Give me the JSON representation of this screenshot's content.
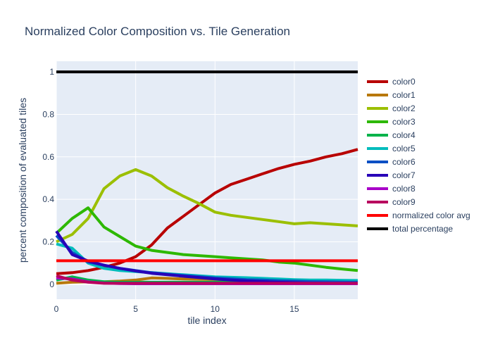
{
  "chart_data": {
    "type": "line",
    "title": "Normalized Color Composition vs. Tile Generation",
    "xlabel": "tile index",
    "ylabel": "percent composition of evaluated tiles",
    "xlim": [
      0,
      19
    ],
    "ylim": [
      -0.07,
      1.05
    ],
    "xticks": [
      0,
      5,
      10,
      15
    ],
    "yticks": [
      0,
      0.2,
      0.4,
      0.6,
      0.8,
      1
    ],
    "grid": true,
    "legend_position": "right",
    "x": [
      0,
      1,
      2,
      3,
      4,
      5,
      6,
      7,
      8,
      9,
      10,
      11,
      12,
      13,
      14,
      15,
      16,
      17,
      18,
      19
    ],
    "series": [
      {
        "name": "color0",
        "color": "#b80000",
        "values": [
          0.05,
          0.055,
          0.065,
          0.08,
          0.1,
          0.13,
          0.185,
          0.265,
          0.32,
          0.375,
          0.43,
          0.47,
          0.495,
          0.52,
          0.545,
          0.565,
          0.58,
          0.6,
          0.615,
          0.635
        ]
      },
      {
        "name": "color1",
        "color": "#b8780a",
        "values": [
          0.005,
          0.01,
          0.012,
          0.012,
          0.015,
          0.02,
          0.03,
          0.028,
          0.025,
          0.024,
          0.023,
          0.022,
          0.021,
          0.02,
          0.02,
          0.019,
          0.018,
          0.017,
          0.016,
          0.015
        ]
      },
      {
        "name": "color2",
        "color": "#9bbf00",
        "values": [
          0.2,
          0.235,
          0.31,
          0.45,
          0.51,
          0.54,
          0.51,
          0.455,
          0.415,
          0.38,
          0.34,
          0.325,
          0.315,
          0.305,
          0.295,
          0.285,
          0.29,
          0.285,
          0.28,
          0.275
        ]
      },
      {
        "name": "color3",
        "color": "#2db800",
        "values": [
          0.24,
          0.31,
          0.36,
          0.27,
          0.225,
          0.18,
          0.16,
          0.15,
          0.14,
          0.135,
          0.13,
          0.125,
          0.12,
          0.115,
          0.105,
          0.1,
          0.09,
          0.08,
          0.072,
          0.065
        ]
      },
      {
        "name": "color4",
        "color": "#00b34a",
        "values": [
          0.02,
          0.035,
          0.02,
          0.012,
          0.01,
          0.01,
          0.01,
          0.01,
          0.01,
          0.01,
          0.01,
          0.01,
          0.01,
          0.01,
          0.01,
          0.01,
          0.01,
          0.01,
          0.01,
          0.01
        ]
      },
      {
        "name": "color5",
        "color": "#00bcbc",
        "values": [
          0.19,
          0.17,
          0.1,
          0.075,
          0.065,
          0.06,
          0.055,
          0.05,
          0.045,
          0.04,
          0.035,
          0.033,
          0.031,
          0.028,
          0.025,
          0.022,
          0.02,
          0.02,
          0.019,
          0.018
        ]
      },
      {
        "name": "color6",
        "color": "#0a4fc4",
        "values": [
          0.23,
          0.15,
          0.105,
          0.09,
          0.075,
          0.065,
          0.055,
          0.048,
          0.042,
          0.036,
          0.03,
          0.026,
          0.022,
          0.02,
          0.017,
          0.015,
          0.013,
          0.012,
          0.011,
          0.01
        ]
      },
      {
        "name": "color7",
        "color": "#2800b8",
        "values": [
          0.25,
          0.14,
          0.11,
          0.09,
          0.075,
          0.063,
          0.052,
          0.045,
          0.038,
          0.032,
          0.025,
          0.02,
          0.016,
          0.013,
          0.01,
          0.008,
          0.006,
          0.005,
          0.004,
          0.003
        ]
      },
      {
        "name": "color8",
        "color": "#a800c8",
        "values": [
          0.03,
          0.025,
          0.012,
          0.006,
          0.004,
          0.003,
          0.003,
          0.003,
          0.003,
          0.003,
          0.003,
          0.003,
          0.003,
          0.003,
          0.003,
          0.003,
          0.003,
          0.003,
          0.003,
          0.003
        ]
      },
      {
        "name": "color9",
        "color": "#b8005e",
        "values": [
          0.04,
          0.02,
          0.01,
          0.005,
          0.005,
          0.005,
          0.005,
          0.005,
          0.005,
          0.005,
          0.005,
          0.005,
          0.005,
          0.005,
          0.005,
          0.005,
          0.005,
          0.005,
          0.005,
          0.005
        ]
      },
      {
        "name": "normalized color avg",
        "color": "#ff0000",
        "values": [
          0.111,
          0.111,
          0.111,
          0.111,
          0.111,
          0.111,
          0.111,
          0.111,
          0.111,
          0.111,
          0.111,
          0.111,
          0.111,
          0.111,
          0.111,
          0.111,
          0.111,
          0.111,
          0.111,
          0.111
        ]
      },
      {
        "name": "total percentage",
        "color": "#000000",
        "values": [
          1,
          1,
          1,
          1,
          1,
          1,
          1,
          1,
          1,
          1,
          1,
          1,
          1,
          1,
          1,
          1,
          1,
          1,
          1,
          1
        ]
      }
    ]
  }
}
